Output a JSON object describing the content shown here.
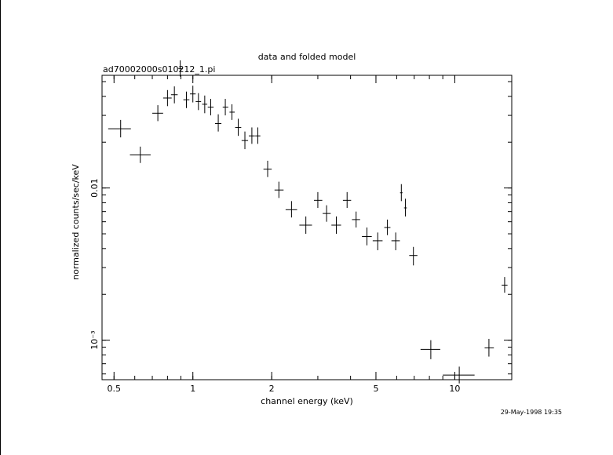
{
  "chart_data": {
    "type": "scatter",
    "title": "data and folded model",
    "subtitle": "ad70002000s010212_1.pi",
    "xlabel": "channel energy (keV)",
    "ylabel": "normalized counts/sec/keV",
    "timestamp": "29-May-1998 19:35",
    "x_scale": "log",
    "y_scale": "log",
    "xlim": [
      0.45,
      16.5
    ],
    "ylim": [
      0.00055,
      0.055
    ],
    "grid": false,
    "x_ticks": [
      {
        "value": 0.5,
        "label": "0.5"
      },
      {
        "value": 1,
        "label": "1"
      },
      {
        "value": 2,
        "label": "2"
      },
      {
        "value": 5,
        "label": "5"
      },
      {
        "value": 10,
        "label": "10"
      }
    ],
    "y_ticks": [
      {
        "value": 0.01,
        "label": "0.01"
      },
      {
        "value": 0.001,
        "label": "10⁻³"
      }
    ],
    "series": [
      {
        "points": [
          {
            "x": 0.53,
            "xlo": 0.475,
            "xhi": 0.58,
            "y": 0.0245,
            "ylo": 0.0215,
            "yhi": 0.028
          },
          {
            "x": 0.63,
            "xlo": 0.575,
            "xhi": 0.69,
            "y": 0.0165,
            "ylo": 0.0146,
            "yhi": 0.0187
          },
          {
            "x": 0.735,
            "xlo": 0.7,
            "xhi": 0.77,
            "y": 0.031,
            "ylo": 0.0275,
            "yhi": 0.035
          },
          {
            "x": 0.8,
            "xlo": 0.77,
            "xhi": 0.83,
            "y": 0.039,
            "ylo": 0.0345,
            "yhi": 0.044
          },
          {
            "x": 0.85,
            "xlo": 0.825,
            "xhi": 0.875,
            "y": 0.041,
            "ylo": 0.036,
            "yhi": 0.0465
          },
          {
            "x": 0.895,
            "xlo": 0.88,
            "xhi": 0.91,
            "y": 0.061,
            "ylo": 0.054,
            "yhi": 0.069
          },
          {
            "x": 0.945,
            "xlo": 0.92,
            "xhi": 0.97,
            "y": 0.038,
            "ylo": 0.0335,
            "yhi": 0.043
          },
          {
            "x": 1.0,
            "xlo": 0.975,
            "xhi": 1.025,
            "y": 0.0415,
            "ylo": 0.0365,
            "yhi": 0.047
          },
          {
            "x": 1.05,
            "xlo": 1.025,
            "xhi": 1.075,
            "y": 0.037,
            "ylo": 0.0325,
            "yhi": 0.042
          },
          {
            "x": 1.11,
            "xlo": 1.085,
            "xhi": 1.135,
            "y": 0.0355,
            "ylo": 0.031,
            "yhi": 0.0405
          },
          {
            "x": 1.17,
            "xlo": 1.14,
            "xhi": 1.2,
            "y": 0.034,
            "ylo": 0.03,
            "yhi": 0.0385
          },
          {
            "x": 1.25,
            "xlo": 1.215,
            "xhi": 1.285,
            "y": 0.0265,
            "ylo": 0.0235,
            "yhi": 0.0305
          },
          {
            "x": 1.33,
            "xlo": 1.3,
            "xhi": 1.365,
            "y": 0.034,
            "ylo": 0.03,
            "yhi": 0.0385
          },
          {
            "x": 1.41,
            "xlo": 1.38,
            "xhi": 1.445,
            "y": 0.0315,
            "ylo": 0.028,
            "yhi": 0.0355
          },
          {
            "x": 1.49,
            "xlo": 1.45,
            "xhi": 1.53,
            "y": 0.025,
            "ylo": 0.022,
            "yhi": 0.0285
          },
          {
            "x": 1.58,
            "xlo": 1.535,
            "xhi": 1.625,
            "y": 0.0205,
            "ylo": 0.018,
            "yhi": 0.0235
          },
          {
            "x": 1.68,
            "xlo": 1.635,
            "xhi": 1.725,
            "y": 0.022,
            "ylo": 0.0195,
            "yhi": 0.025
          },
          {
            "x": 1.77,
            "xlo": 1.73,
            "xhi": 1.81,
            "y": 0.022,
            "ylo": 0.0195,
            "yhi": 0.025
          },
          {
            "x": 1.93,
            "xlo": 1.86,
            "xhi": 2.0,
            "y": 0.0133,
            "ylo": 0.0118,
            "yhi": 0.0151
          },
          {
            "x": 2.13,
            "xlo": 2.05,
            "xhi": 2.22,
            "y": 0.0097,
            "ylo": 0.0086,
            "yhi": 0.011
          },
          {
            "x": 2.38,
            "xlo": 2.26,
            "xhi": 2.5,
            "y": 0.0072,
            "ylo": 0.0064,
            "yhi": 0.0082
          },
          {
            "x": 2.7,
            "xlo": 2.55,
            "xhi": 2.85,
            "y": 0.0057,
            "ylo": 0.005,
            "yhi": 0.0065
          },
          {
            "x": 3.0,
            "xlo": 2.9,
            "xhi": 3.12,
            "y": 0.0083,
            "ylo": 0.0074,
            "yhi": 0.0094
          },
          {
            "x": 3.24,
            "xlo": 3.13,
            "xhi": 3.36,
            "y": 0.0068,
            "ylo": 0.006,
            "yhi": 0.0077
          },
          {
            "x": 3.53,
            "xlo": 3.38,
            "xhi": 3.68,
            "y": 0.0057,
            "ylo": 0.005,
            "yhi": 0.0065
          },
          {
            "x": 3.88,
            "xlo": 3.74,
            "xhi": 4.02,
            "y": 0.0083,
            "ylo": 0.0074,
            "yhi": 0.0094
          },
          {
            "x": 4.2,
            "xlo": 4.05,
            "xhi": 4.35,
            "y": 0.0062,
            "ylo": 0.0055,
            "yhi": 0.007
          },
          {
            "x": 4.62,
            "xlo": 4.42,
            "xhi": 4.82,
            "y": 0.0048,
            "ylo": 0.0042,
            "yhi": 0.0055
          },
          {
            "x": 5.08,
            "xlo": 4.86,
            "xhi": 5.3,
            "y": 0.0045,
            "ylo": 0.0039,
            "yhi": 0.0051
          },
          {
            "x": 5.53,
            "xlo": 5.38,
            "xhi": 5.68,
            "y": 0.0055,
            "ylo": 0.0049,
            "yhi": 0.0062
          },
          {
            "x": 5.95,
            "xlo": 5.73,
            "xhi": 6.17,
            "y": 0.0045,
            "ylo": 0.0039,
            "yhi": 0.0051
          },
          {
            "x": 6.25,
            "xlo": 6.18,
            "xhi": 6.32,
            "y": 0.0093,
            "ylo": 0.0082,
            "yhi": 0.0106
          },
          {
            "x": 6.48,
            "xlo": 6.4,
            "xhi": 6.56,
            "y": 0.0074,
            "ylo": 0.0065,
            "yhi": 0.0085
          },
          {
            "x": 6.95,
            "xlo": 6.7,
            "xhi": 7.2,
            "y": 0.0036,
            "ylo": 0.0031,
            "yhi": 0.0041
          },
          {
            "x": 8.1,
            "xlo": 7.4,
            "xhi": 8.8,
            "y": 0.00087,
            "ylo": 0.00075,
            "yhi": 0.001
          },
          {
            "x": 10.4,
            "xlo": 9.0,
            "xhi": 11.9,
            "y": 0.00059,
            "ylo": 0.00052,
            "yhi": 0.00067
          },
          {
            "x": 13.5,
            "xlo": 13.0,
            "xhi": 14.1,
            "y": 0.00089,
            "ylo": 0.00078,
            "yhi": 0.00102
          },
          {
            "x": 15.5,
            "xlo": 15.1,
            "xhi": 15.9,
            "y": 0.0023,
            "ylo": 0.00205,
            "yhi": 0.0026
          }
        ]
      }
    ]
  }
}
